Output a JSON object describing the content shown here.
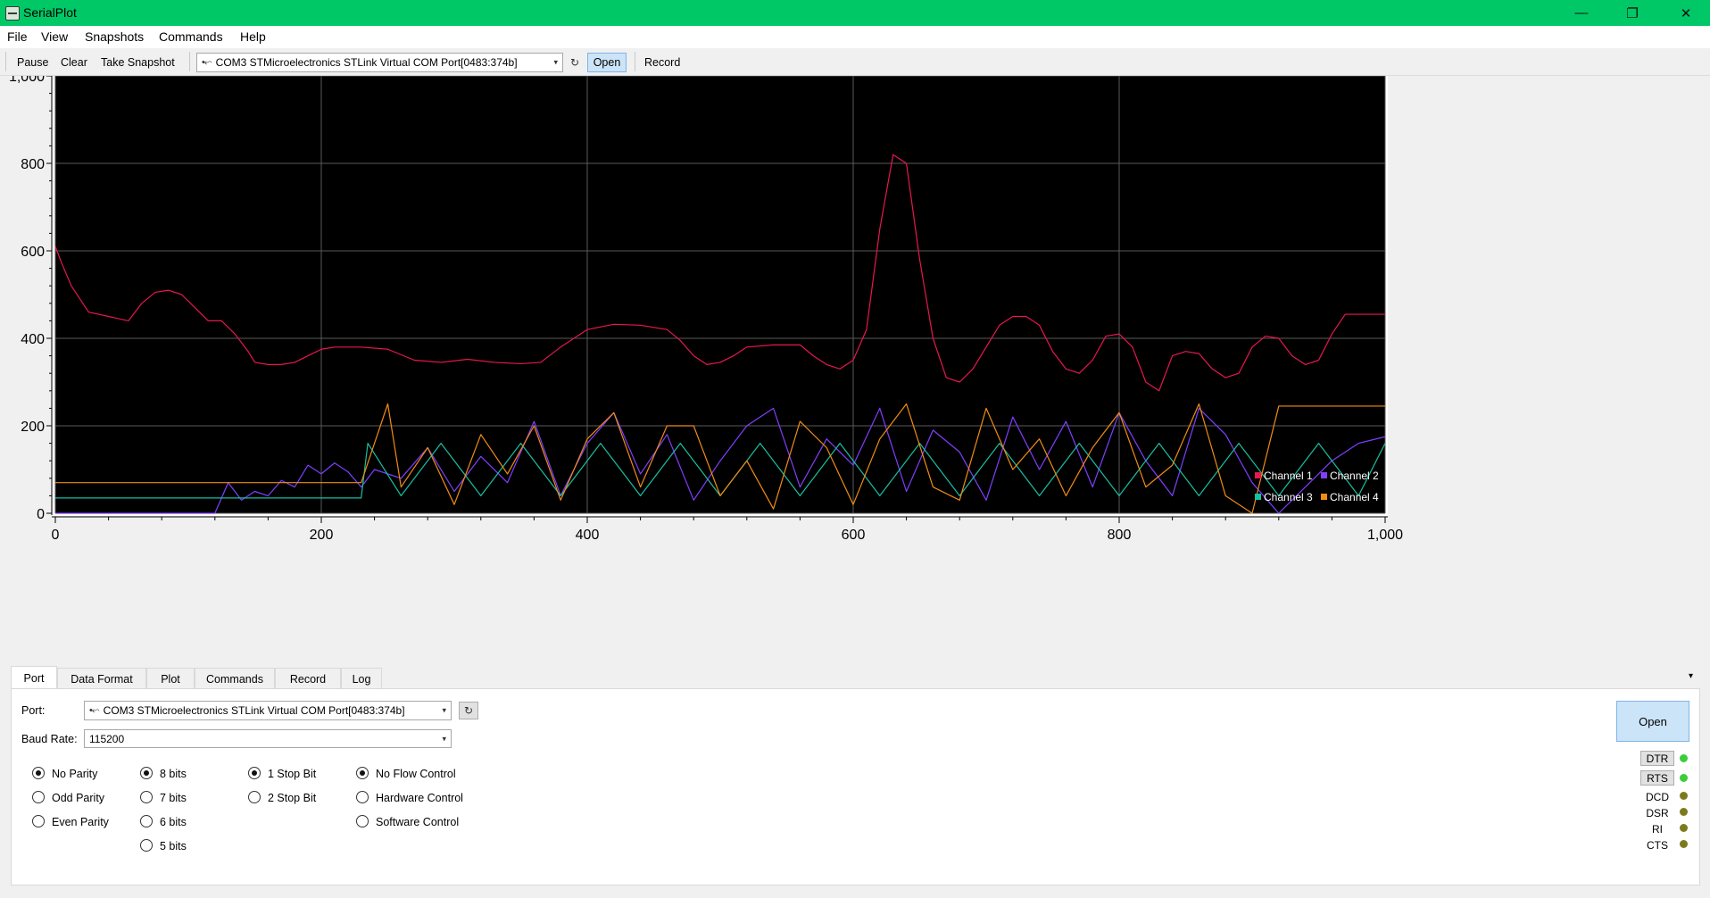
{
  "window": {
    "title": "SerialPlot",
    "minimize": "—",
    "restore": "❐",
    "close": "✕"
  },
  "menu": [
    "File",
    "View",
    "Snapshots",
    "Commands",
    "Help"
  ],
  "toolbar": {
    "pause": "Pause",
    "clear": "Clear",
    "snapshot": "Take Snapshot",
    "port_value": "COM3 STMicroelectronics STLink Virtual COM Port[0483:374b]",
    "refresh": "↻",
    "open": "Open",
    "record": "Record"
  },
  "chart_data": {
    "type": "line",
    "xlim": [
      0,
      1000
    ],
    "ylim": [
      0,
      1000
    ],
    "x_ticks": [
      "0",
      "200",
      "400",
      "600",
      "800",
      "1,000"
    ],
    "y_ticks": [
      "0",
      "200",
      "400",
      "600",
      "800",
      "1,000"
    ],
    "grid": true,
    "background": "#000000",
    "legend_position": "bottom-right",
    "series": [
      {
        "name": "Channel 1",
        "color": "#e8174f",
        "x": [
          0,
          5,
          12,
          25,
          40,
          55,
          65,
          75,
          85,
          95,
          105,
          115,
          125,
          135,
          145,
          150,
          160,
          170,
          180,
          190,
          200,
          210,
          220,
          230,
          250,
          270,
          290,
          310,
          330,
          350,
          365,
          380,
          400,
          420,
          440,
          460,
          470,
          480,
          490,
          500,
          510,
          520,
          540,
          560,
          570,
          580,
          590,
          600,
          610,
          620,
          630,
          640,
          650,
          660,
          670,
          680,
          690,
          700,
          710,
          720,
          730,
          740,
          750,
          760,
          770,
          780,
          790,
          800,
          810,
          820,
          830,
          840,
          850,
          860,
          870,
          880,
          890,
          900,
          910,
          920,
          930,
          940,
          950,
          960,
          970,
          980,
          990,
          1000
        ],
        "y": [
          610,
          570,
          520,
          460,
          450,
          440,
          480,
          505,
          510,
          500,
          470,
          440,
          440,
          410,
          370,
          345,
          340,
          340,
          345,
          360,
          375,
          380,
          380,
          380,
          375,
          350,
          345,
          352,
          345,
          342,
          345,
          380,
          420,
          432,
          430,
          420,
          395,
          360,
          340,
          345,
          360,
          380,
          385,
          385,
          360,
          340,
          330,
          350,
          420,
          650,
          820,
          800,
          580,
          400,
          310,
          300,
          330,
          380,
          430,
          450,
          450,
          430,
          370,
          330,
          320,
          350,
          405,
          410,
          380,
          300,
          280,
          360,
          370,
          365,
          330,
          310,
          320,
          380,
          405,
          400,
          360,
          340,
          350,
          410,
          455,
          455,
          455,
          455
        ]
      },
      {
        "name": "Channel 2",
        "color": "#7f3fff",
        "x": [
          0,
          40,
          80,
          120,
          130,
          140,
          150,
          160,
          170,
          180,
          190,
          200,
          210,
          220,
          230,
          240,
          260,
          280,
          300,
          320,
          340,
          360,
          380,
          400,
          420,
          440,
          460,
          480,
          500,
          520,
          540,
          560,
          580,
          600,
          620,
          640,
          660,
          680,
          700,
          720,
          740,
          760,
          780,
          800,
          820,
          840,
          860,
          880,
          900,
          920,
          940,
          960,
          980,
          1000
        ],
        "y": [
          0,
          0,
          0,
          0,
          70,
          30,
          50,
          40,
          75,
          60,
          110,
          90,
          115,
          95,
          60,
          100,
          80,
          150,
          50,
          130,
          70,
          210,
          40,
          160,
          230,
          90,
          180,
          30,
          120,
          200,
          240,
          60,
          170,
          110,
          240,
          50,
          190,
          140,
          30,
          220,
          100,
          210,
          60,
          230,
          120,
          40,
          240,
          180,
          70,
          0,
          60,
          120,
          160,
          175
        ]
      },
      {
        "name": "Channel 3",
        "color": "#19c0a0",
        "x": [
          0,
          50,
          100,
          150,
          200,
          230,
          235,
          260,
          290,
          320,
          350,
          380,
          410,
          440,
          470,
          500,
          530,
          560,
          590,
          620,
          650,
          680,
          710,
          740,
          770,
          800,
          830,
          860,
          890,
          920,
          950,
          980,
          1000
        ],
        "y": [
          35,
          35,
          35,
          35,
          35,
          35,
          160,
          40,
          160,
          40,
          160,
          40,
          160,
          40,
          160,
          40,
          160,
          40,
          160,
          40,
          160,
          40,
          160,
          40,
          160,
          40,
          160,
          40,
          160,
          40,
          160,
          40,
          160
        ]
      },
      {
        "name": "Channel 4",
        "color": "#f08c14",
        "x": [
          0,
          50,
          100,
          150,
          200,
          230,
          250,
          260,
          280,
          300,
          320,
          340,
          360,
          380,
          400,
          420,
          440,
          460,
          480,
          500,
          520,
          540,
          560,
          580,
          600,
          620,
          640,
          660,
          680,
          700,
          720,
          740,
          760,
          780,
          800,
          820,
          840,
          860,
          880,
          900,
          920,
          940,
          960,
          980,
          1000
        ],
        "y": [
          70,
          70,
          70,
          70,
          70,
          70,
          250,
          60,
          150,
          20,
          180,
          90,
          200,
          30,
          170,
          230,
          60,
          200,
          200,
          40,
          120,
          10,
          210,
          150,
          20,
          170,
          250,
          60,
          30,
          240,
          100,
          170,
          40,
          150,
          230,
          60,
          110,
          250,
          40,
          0,
          245,
          245,
          245,
          245,
          245
        ]
      }
    ]
  },
  "tabs": [
    "Port",
    "Data Format",
    "Plot",
    "Commands",
    "Record",
    "Log"
  ],
  "tab_scroll": "▾",
  "port_panel": {
    "port_label": "Port:",
    "port_value": "COM3 STMicroelectronics STLink Virtual COM Port[0483:374b]",
    "refresh": "↻",
    "baud_label": "Baud Rate:",
    "baud_value": "115200",
    "parity": [
      "No Parity",
      "Odd Parity",
      "Even Parity"
    ],
    "data_bits": [
      "8 bits",
      "7 bits",
      "6 bits",
      "5 bits"
    ],
    "stop_bits": [
      "1 Stop Bit",
      "2 Stop Bit"
    ],
    "flow": [
      "No Flow Control",
      "Hardware Control",
      "Software Control"
    ],
    "open": "Open",
    "signals": {
      "dtr": "DTR",
      "rts": "RTS",
      "dcd": "DCD",
      "dsr": "DSR",
      "ri": "RI",
      "cts": "CTS"
    },
    "led_on": "#3ccc3c",
    "led_off": "#7c7a1a"
  },
  "dropdown_arrow": "▾",
  "usb_glyph": "•⬿"
}
